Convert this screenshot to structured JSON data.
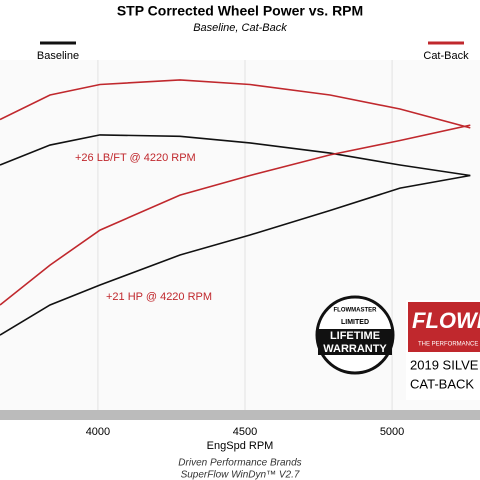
{
  "chart_data": {
    "type": "line",
    "title": "STP Corrected Wheel Power vs. RPM",
    "subtitle": "Baseline, Cat-Back",
    "x_label": "EngSpd  RPM",
    "footer": [
      "Driven Performance Brands",
      "SuperFlow WinDyn™ V2.7"
    ],
    "x": [
      3667,
      3837,
      4007,
      4279,
      4517,
      4789,
      5027,
      5266
    ],
    "xlim": [
      3667,
      5299
    ],
    "xticks": [
      4000,
      4500,
      5000
    ],
    "ylim": [
      0,
      100
    ],
    "grid": true,
    "series": [
      {
        "name": "Baseline",
        "color": "#111111",
        "torque": [
          70,
          75.7,
          78.6,
          78.2,
          76.3,
          73.4,
          70,
          67
        ],
        "power": [
          21.4,
          30,
          35.7,
          44.3,
          50,
          57,
          63.4,
          67
        ]
      },
      {
        "name": "Cat-Back",
        "color": "#c0282d",
        "torque": [
          83,
          90,
          93,
          94.3,
          93,
          90,
          86,
          80.6
        ],
        "power": [
          30,
          41.4,
          51.4,
          61.4,
          67,
          72.9,
          77,
          81.4
        ]
      }
    ],
    "annotations": [
      "+26 LB/FT @ 4220 RPM",
      "+21 HP @ 4220 RPM"
    ],
    "badge": [
      "FLOWMASTER",
      "LIMITED",
      "LIFETIME",
      "WARRANTY"
    ],
    "brand": {
      "logo": "FLOWM",
      "tagline": "THE PERFORMANCE",
      "lines": [
        "2019 SILVE",
        "CAT-BACK"
      ]
    }
  }
}
